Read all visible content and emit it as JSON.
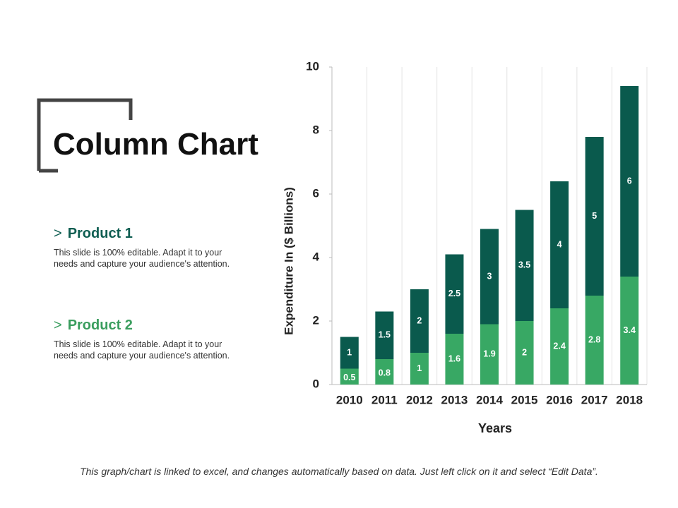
{
  "title": "Column Chart",
  "footnote": "This graph/chart is linked to excel, and changes automatically based on data. Just left click on it and select “Edit Data”.",
  "chart_data": {
    "type": "stacked_bar",
    "categories": [
      "2010",
      "2011",
      "2012",
      "2013",
      "2014",
      "2015",
      "2016",
      "2017",
      "2018"
    ],
    "series": [
      {
        "name": "Product 2",
        "color": "#38a864",
        "text_color": "#3a9d5e",
        "description": "This slide is 100% editable. Adapt it to your needs and capture your audience's attention.",
        "values": [
          0.5,
          0.8,
          1,
          1.6,
          1.9,
          2,
          2.4,
          2.8,
          3.4
        ]
      },
      {
        "name": "Product 1",
        "color": "#0a5a4d",
        "text_color": "#0f5e52",
        "description": "This slide is 100% editable. Adapt it to your needs and capture your audience's attention.",
        "values": [
          1,
          1.5,
          2,
          2.5,
          3,
          3.5,
          4,
          5,
          6
        ]
      }
    ],
    "y_label": "Expenditure In ($ Billions)",
    "x_label": "Years",
    "ylim": [
      0,
      10
    ],
    "yticks": [
      0,
      2,
      4,
      6,
      8,
      10
    ],
    "grid": true
  }
}
